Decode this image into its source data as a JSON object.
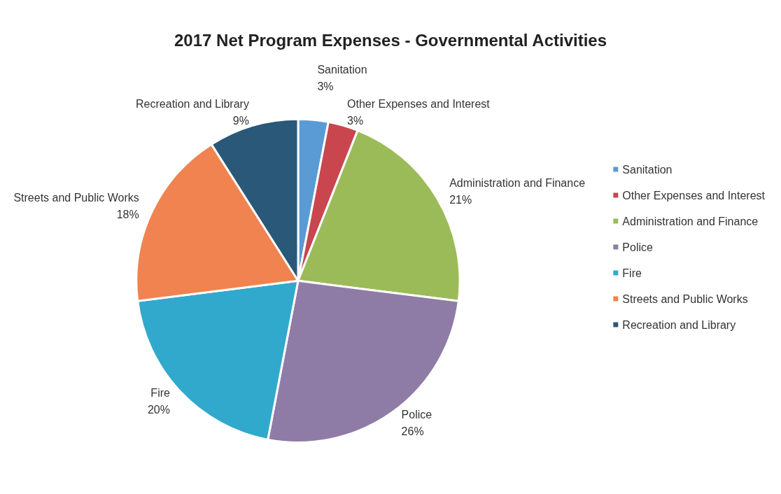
{
  "chart_data": {
    "type": "pie",
    "title": "2017 Net Program Expenses - Governmental Activities",
    "categories": [
      "Sanitation",
      "Other Expenses and Interest",
      "Administration and Finance",
      "Police",
      "Fire",
      "Streets and Public Works",
      "Recreation and Library"
    ],
    "values": [
      3,
      3,
      21,
      26,
      20,
      18,
      9
    ],
    "value_labels": [
      "3%",
      "3%",
      "21%",
      "26%",
      "20%",
      "18%",
      "9%"
    ],
    "colors": [
      "#5b9bd5",
      "#c9464f",
      "#9bbb59",
      "#8e7ca6",
      "#31a9cc",
      "#f0834f",
      "#2a5878"
    ],
    "legend": "right"
  }
}
